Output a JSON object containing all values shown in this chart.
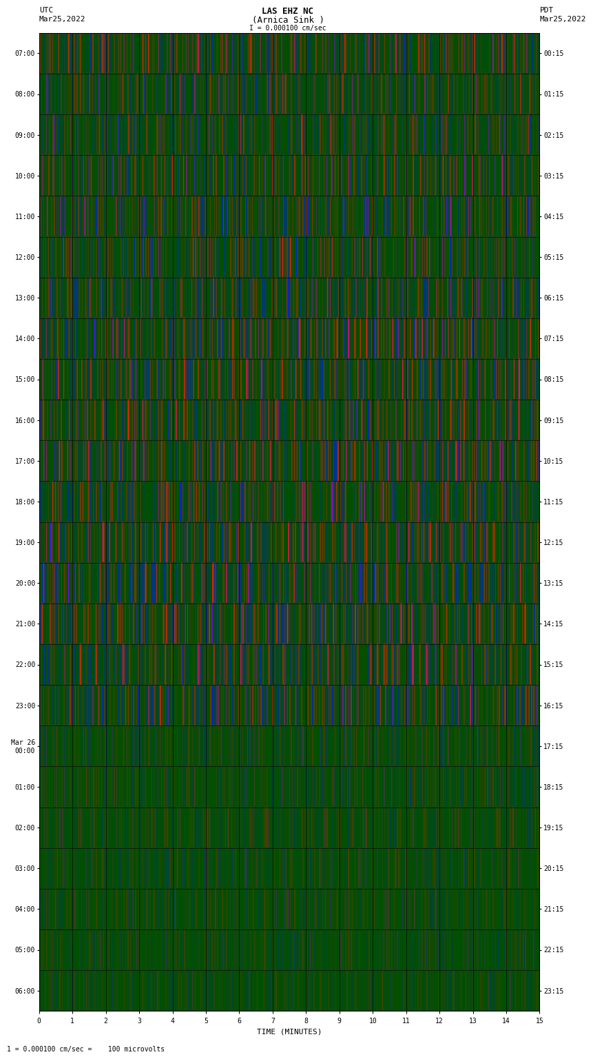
{
  "title_line1": "LAS EHZ NC",
  "title_line2": "(Arnica Sink )",
  "title_line3": "I = 0.000100 cm/sec",
  "left_label_line1": "UTC",
  "left_label_line2": "Mar25,2022",
  "right_label_line1": "PDT",
  "right_label_line2": "Mar25,2022",
  "bottom_label": "TIME (MINUTES)",
  "bottom_note": "1 = 0.000100 cm/sec =    100 microvolts",
  "utc_times": [
    "07:00",
    "08:00",
    "09:00",
    "10:00",
    "11:00",
    "12:00",
    "13:00",
    "14:00",
    "15:00",
    "16:00",
    "17:00",
    "18:00",
    "19:00",
    "20:00",
    "21:00",
    "22:00",
    "23:00",
    "Mar 26\n00:00",
    "01:00",
    "02:00",
    "03:00",
    "04:00",
    "05:00",
    "06:00"
  ],
  "pdt_times": [
    "00:15",
    "01:15",
    "02:15",
    "03:15",
    "04:15",
    "05:15",
    "06:15",
    "07:15",
    "08:15",
    "09:15",
    "10:15",
    "11:15",
    "12:15",
    "13:15",
    "14:15",
    "15:15",
    "16:15",
    "17:15",
    "18:15",
    "19:15",
    "20:15",
    "21:15",
    "22:15",
    "23:15"
  ],
  "n_rows": 24,
  "n_minutes": 15,
  "fig_bg": "#ffffff",
  "seed": 42
}
